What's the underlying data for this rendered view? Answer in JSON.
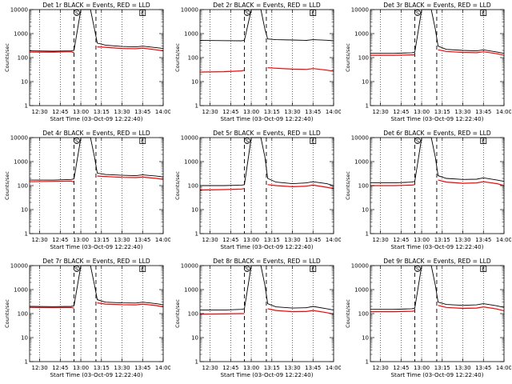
{
  "style": {
    "events_color": "#000000",
    "lld_color": "#ff0000",
    "background": "#ffffff"
  },
  "chart_data": [
    {
      "type": "line",
      "title": "Det 1r BLACK = Events, RED = LLD",
      "ylabel": "Counts/sec",
      "xlabel": "Start Time (03-Oct-09 12:22:40)",
      "x_ticks": [
        "12:30",
        "12:45",
        "13:00",
        "13:15",
        "13:30",
        "13:45",
        "14:00"
      ],
      "y_ticks": [
        "1",
        "10",
        "100",
        "1000",
        "10000"
      ],
      "xlim": [
        "12:22:40",
        "14:00"
      ],
      "ylim": [
        1,
        10000
      ],
      "y_scale": "log",
      "markers": [
        "S",
        "E"
      ],
      "series": [
        {
          "x": [
            "12:22:40",
            "12:40",
            "12:53",
            "12:55",
            "13:00",
            "13:07",
            "13:10",
            "13:12",
            "13:18",
            "13:30",
            "13:40",
            "13:45",
            "13:55",
            "14:00"
          ],
          "values": [
            190,
            185,
            190,
            200,
            10000,
            10000,
            1500,
            400,
            330,
            290,
            280,
            300,
            260,
            240
          ]
        },
        {
          "x": [
            "12:22:40",
            "12:40",
            "12:53",
            "12:55",
            "13:00",
            "13:07",
            "13:10",
            "13:12",
            "13:18",
            "13:30",
            "13:40",
            "13:45",
            "13:55",
            "14:00"
          ],
          "values": [
            170,
            170,
            175,
            160,
            null,
            null,
            null,
            280,
            270,
            240,
            235,
            250,
            210,
            190
          ]
        }
      ]
    },
    {
      "type": "line",
      "title": "Det 2r BLACK = Events, RED = LLD",
      "ylabel": "Counts/sec",
      "xlabel": "Start Time (03-Oct-09 12:22:40)",
      "x_ticks": [
        "12:30",
        "12:45",
        "13:00",
        "13:15",
        "13:30",
        "13:45",
        "14:00"
      ],
      "y_ticks": [
        "1",
        "10",
        "100",
        "1000",
        "10000"
      ],
      "xlim": [
        "12:22:40",
        "14:00"
      ],
      "ylim": [
        1,
        10000
      ],
      "y_scale": "log",
      "markers": [
        "S",
        "E"
      ],
      "series": [
        {
          "x": [
            "12:22:40",
            "12:40",
            "12:53",
            "12:55",
            "13:00",
            "13:07",
            "13:10",
            "13:12",
            "13:18",
            "13:30",
            "13:40",
            "13:45",
            "13:55",
            "14:00"
          ],
          "values": [
            520,
            510,
            500,
            520,
            10000,
            10000,
            1500,
            600,
            560,
            540,
            520,
            560,
            530,
            500
          ]
        },
        {
          "x": [
            "12:22:40",
            "12:40",
            "12:53",
            "12:55",
            "13:00",
            "13:07",
            "13:10",
            "13:12",
            "13:18",
            "13:30",
            "13:40",
            "13:45",
            "13:55",
            "14:00"
          ],
          "values": [
            25,
            26,
            28,
            30,
            null,
            null,
            null,
            38,
            36,
            33,
            32,
            35,
            30,
            27
          ]
        }
      ]
    },
    {
      "type": "line",
      "title": "Det 3r BLACK = Events, RED = LLD",
      "ylabel": "Counts/sec",
      "xlabel": "Start Time (03-Oct-09 12:22:40)",
      "x_ticks": [
        "12:30",
        "12:45",
        "13:00",
        "13:15",
        "13:30",
        "13:45",
        "14:00"
      ],
      "y_ticks": [
        "1",
        "10",
        "100",
        "1000",
        "10000"
      ],
      "xlim": [
        "12:22:40",
        "14:00"
      ],
      "ylim": [
        1,
        10000
      ],
      "y_scale": "log",
      "markers": [
        "S",
        "E"
      ],
      "series": [
        {
          "x": [
            "12:22:40",
            "12:40",
            "12:53",
            "12:55",
            "13:00",
            "13:07",
            "13:10",
            "13:12",
            "13:18",
            "13:30",
            "13:40",
            "13:45",
            "13:55",
            "14:00"
          ],
          "values": [
            150,
            150,
            160,
            170,
            10000,
            10000,
            1500,
            300,
            220,
            200,
            190,
            210,
            170,
            150
          ]
        },
        {
          "x": [
            "12:22:40",
            "12:40",
            "12:53",
            "12:55",
            "13:00",
            "13:07",
            "13:10",
            "13:12",
            "13:18",
            "13:30",
            "13:40",
            "13:45",
            "13:55",
            "14:00"
          ],
          "values": [
            125,
            125,
            130,
            130,
            null,
            null,
            null,
            210,
            180,
            165,
            160,
            175,
            145,
            125
          ]
        }
      ]
    },
    {
      "type": "line",
      "title": "Det 4r BLACK = Events, RED = LLD",
      "ylabel": "Counts/sec",
      "xlabel": "Start Time (03-Oct-09 12:22:40)",
      "x_ticks": [
        "12:30",
        "12:45",
        "13:00",
        "13:15",
        "13:30",
        "13:45",
        "14:00"
      ],
      "y_ticks": [
        "1",
        "10",
        "100",
        "1000",
        "10000"
      ],
      "xlim": [
        "12:22:40",
        "14:00"
      ],
      "ylim": [
        1,
        10000
      ],
      "y_scale": "log",
      "markers": [
        "S",
        "E"
      ],
      "series": [
        {
          "x": [
            "12:22:40",
            "12:40",
            "12:53",
            "12:55",
            "13:00",
            "13:07",
            "13:10",
            "13:12",
            "13:18",
            "13:30",
            "13:40",
            "13:45",
            "13:55",
            "14:00"
          ],
          "values": [
            170,
            170,
            180,
            190,
            10000,
            10000,
            1500,
            330,
            290,
            270,
            260,
            280,
            250,
            230
          ]
        },
        {
          "x": [
            "12:22:40",
            "12:40",
            "12:53",
            "12:55",
            "13:00",
            "13:07",
            "13:10",
            "13:12",
            "13:18",
            "13:30",
            "13:40",
            "13:45",
            "13:55",
            "14:00"
          ],
          "values": [
            145,
            150,
            155,
            140,
            null,
            null,
            null,
            250,
            240,
            220,
            215,
            225,
            200,
            180
          ]
        }
      ]
    },
    {
      "type": "line",
      "title": "Det 5r BLACK = Events, RED = LLD",
      "ylabel": "Counts/sec",
      "xlabel": "Start Time (03-Oct-09 12:22:40)",
      "x_ticks": [
        "12:30",
        "12:45",
        "13:00",
        "13:15",
        "13:30",
        "13:45",
        "14:00"
      ],
      "y_ticks": [
        "1",
        "10",
        "100",
        "1000",
        "10000"
      ],
      "xlim": [
        "12:22:40",
        "14:00"
      ],
      "ylim": [
        1,
        10000
      ],
      "y_scale": "log",
      "markers": [
        "S",
        "E"
      ],
      "series": [
        {
          "x": [
            "12:22:40",
            "12:40",
            "12:53",
            "12:55",
            "13:00",
            "13:07",
            "13:10",
            "13:12",
            "13:18",
            "13:30",
            "13:40",
            "13:45",
            "13:55",
            "14:00"
          ],
          "values": [
            100,
            100,
            105,
            110,
            10000,
            10000,
            1500,
            200,
            140,
            120,
            130,
            145,
            120,
            100
          ]
        },
        {
          "x": [
            "12:22:40",
            "12:40",
            "12:53",
            "12:55",
            "13:00",
            "13:07",
            "13:10",
            "13:12",
            "13:18",
            "13:30",
            "13:40",
            "13:45",
            "13:55",
            "14:00"
          ],
          "values": [
            65,
            68,
            72,
            75,
            null,
            null,
            null,
            110,
            100,
            90,
            95,
            105,
            85,
            75
          ]
        }
      ]
    },
    {
      "type": "line",
      "title": "Det 6r BLACK = Events, RED = LLD",
      "ylabel": "Counts/sec",
      "xlabel": "Start Time (03-Oct-09 12:22:40)",
      "x_ticks": [
        "12:30",
        "12:45",
        "13:00",
        "13:15",
        "13:30",
        "13:45",
        "14:00"
      ],
      "y_ticks": [
        "1",
        "10",
        "100",
        "1000",
        "10000"
      ],
      "xlim": [
        "12:22:40",
        "14:00"
      ],
      "ylim": [
        1,
        10000
      ],
      "y_scale": "log",
      "markers": [
        "S",
        "E"
      ],
      "series": [
        {
          "x": [
            "12:22:40",
            "12:40",
            "12:53",
            "12:55",
            "13:00",
            "13:07",
            "13:10",
            "13:12",
            "13:18",
            "13:30",
            "13:40",
            "13:45",
            "13:55",
            "14:00"
          ],
          "values": [
            130,
            130,
            140,
            150,
            10000,
            10000,
            1500,
            260,
            200,
            180,
            185,
            210,
            170,
            150
          ]
        },
        {
          "x": [
            "12:22:40",
            "12:40",
            "12:53",
            "12:55",
            "13:00",
            "13:07",
            "13:10",
            "13:12",
            "13:18",
            "13:30",
            "13:40",
            "13:45",
            "13:55",
            "14:00"
          ],
          "values": [
            100,
            100,
            105,
            110,
            null,
            null,
            null,
            170,
            140,
            125,
            130,
            145,
            120,
            100
          ]
        }
      ]
    },
    {
      "type": "line",
      "title": "Det 7r BLACK = Events, RED = LLD",
      "ylabel": "Counts/sec",
      "xlabel": "Start Time (03-Oct-09 12:22:40)",
      "x_ticks": [
        "12:30",
        "12:45",
        "13:00",
        "13:15",
        "13:30",
        "13:45",
        "14:00"
      ],
      "y_ticks": [
        "1",
        "10",
        "100",
        "1000",
        "10000"
      ],
      "xlim": [
        "12:22:40",
        "14:00"
      ],
      "ylim": [
        1,
        10000
      ],
      "y_scale": "log",
      "markers": [
        "S",
        "E"
      ],
      "series": [
        {
          "x": [
            "12:22:40",
            "12:40",
            "12:53",
            "12:55",
            "13:00",
            "13:07",
            "13:10",
            "13:12",
            "13:18",
            "13:30",
            "13:40",
            "13:45",
            "13:55",
            "14:00"
          ],
          "values": [
            200,
            195,
            200,
            210,
            10000,
            10000,
            1500,
            380,
            300,
            280,
            275,
            300,
            260,
            230
          ]
        },
        {
          "x": [
            "12:22:40",
            "12:40",
            "12:53",
            "12:55",
            "13:00",
            "13:07",
            "13:10",
            "13:12",
            "13:18",
            "13:30",
            "13:40",
            "13:45",
            "13:55",
            "14:00"
          ],
          "values": [
            180,
            178,
            180,
            170,
            null,
            null,
            null,
            280,
            250,
            235,
            230,
            250,
            215,
            190
          ]
        }
      ]
    },
    {
      "type": "line",
      "title": "Det 8r BLACK = Events, RED = LLD",
      "ylabel": "Counts/sec",
      "xlabel": "Start Time (03-Oct-09 12:22:40)",
      "x_ticks": [
        "12:30",
        "12:45",
        "13:00",
        "13:15",
        "13:30",
        "13:45",
        "14:00"
      ],
      "y_ticks": [
        "1",
        "10",
        "100",
        "1000",
        "10000"
      ],
      "xlim": [
        "12:22:40",
        "14:00"
      ],
      "ylim": [
        1,
        10000
      ],
      "y_scale": "log",
      "markers": [
        "S",
        "E"
      ],
      "series": [
        {
          "x": [
            "12:22:40",
            "12:40",
            "12:53",
            "12:55",
            "13:00",
            "13:07",
            "13:10",
            "13:12",
            "13:18",
            "13:30",
            "13:40",
            "13:45",
            "13:55",
            "14:00"
          ],
          "values": [
            140,
            140,
            150,
            160,
            10000,
            10000,
            1500,
            260,
            190,
            170,
            175,
            200,
            160,
            140
          ]
        },
        {
          "x": [
            "12:22:40",
            "12:40",
            "12:53",
            "12:55",
            "13:00",
            "13:07",
            "13:10",
            "13:12",
            "13:18",
            "13:30",
            "13:40",
            "13:45",
            "13:55",
            "14:00"
          ],
          "values": [
            95,
            97,
            100,
            100,
            null,
            null,
            null,
            160,
            135,
            120,
            122,
            135,
            110,
            95
          ]
        }
      ]
    },
    {
      "type": "line",
      "title": "Det 9r BLACK = Events, RED = LLD",
      "ylabel": "Counts/sec",
      "xlabel": "Start Time (03-Oct-09 12:22:40)",
      "x_ticks": [
        "12:30",
        "12:45",
        "13:00",
        "13:15",
        "13:30",
        "13:45",
        "14:00"
      ],
      "y_ticks": [
        "1",
        "10",
        "100",
        "1000",
        "10000"
      ],
      "xlim": [
        "12:22:40",
        "14:00"
      ],
      "ylim": [
        1,
        10000
      ],
      "y_scale": "log",
      "markers": [
        "S",
        "E"
      ],
      "series": [
        {
          "x": [
            "12:22:40",
            "12:40",
            "12:53",
            "12:55",
            "13:00",
            "13:07",
            "13:10",
            "13:12",
            "13:18",
            "13:30",
            "13:40",
            "13:45",
            "13:55",
            "14:00"
          ],
          "values": [
            150,
            150,
            160,
            170,
            10000,
            10000,
            1500,
            300,
            240,
            220,
            230,
            260,
            210,
            180
          ]
        },
        {
          "x": [
            "12:22:40",
            "12:40",
            "12:53",
            "12:55",
            "13:00",
            "13:07",
            "13:10",
            "13:12",
            "13:18",
            "13:30",
            "13:40",
            "13:45",
            "13:55",
            "14:00"
          ],
          "values": [
            120,
            120,
            125,
            130,
            null,
            null,
            null,
            220,
            180,
            165,
            170,
            190,
            155,
            130
          ]
        }
      ]
    }
  ]
}
